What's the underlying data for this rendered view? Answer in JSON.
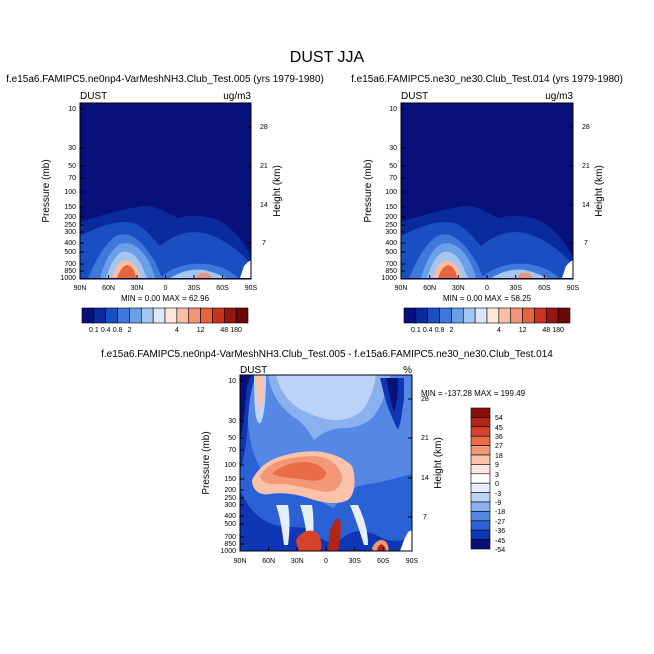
{
  "figure": {
    "title": "DUST JJA"
  },
  "colors": {
    "seq": [
      "#08107a",
      "#0a2b9e",
      "#1a4fc4",
      "#3d78da",
      "#6b9fe8",
      "#a6c6f2",
      "#dbe7f8",
      "#fde6da",
      "#f8bfa6",
      "#f19478",
      "#e6653f",
      "#c9331f",
      "#97160d",
      "#6a0908"
    ],
    "div": [
      "#08107a",
      "#0f36b4",
      "#2a62d6",
      "#5588e4",
      "#8ab0ef",
      "#bcd2f6",
      "#e6eefa",
      "#ffffff",
      "#fde7dc",
      "#f9c2a9",
      "#f29877",
      "#e96c47",
      "#d7432a",
      "#b42417",
      "#8c0e0b"
    ]
  },
  "chart_data": [
    {
      "type": "heatmap",
      "subtitle": "f.e15a6.FAMIPC5.ne0np4-VarMeshNH3.Club_Test.005 (yrs 1979-1980)",
      "left_label": "DUST",
      "right_label": "ug/m3",
      "ylabel": "Pressure (mb)",
      "ylabel_right": "Height (km)",
      "pressure_ticks": [
        "10",
        "30",
        "50",
        "70",
        "100",
        "150",
        "200",
        "250",
        "300",
        "400",
        "500",
        "700",
        "850",
        "1000"
      ],
      "height_ticks": [
        "28",
        "21",
        "14",
        "7"
      ],
      "lat_ticks": [
        "90N",
        "60N",
        "30N",
        "0",
        "30S",
        "60S",
        "90S"
      ],
      "stats": "MIN =   0.00  MAX =  62.96",
      "colorbar_labels": [
        "0.1",
        "0.4",
        "0.8",
        "2",
        "4",
        "12",
        "48",
        "180"
      ]
    },
    {
      "type": "heatmap",
      "subtitle": "f.e15a6.FAMIPC5.ne30_ne30.Club_Test.014 (yrs 1979-1980)",
      "left_label": "DUST",
      "right_label": "ug/m3",
      "ylabel": "Pressure (mb)",
      "ylabel_right": "Height (km)",
      "pressure_ticks": [
        "10",
        "30",
        "50",
        "70",
        "100",
        "150",
        "200",
        "250",
        "300",
        "400",
        "500",
        "700",
        "850",
        "1000"
      ],
      "height_ticks": [
        "28",
        "21",
        "14",
        "7"
      ],
      "lat_ticks": [
        "90N",
        "60N",
        "30N",
        "0",
        "30S",
        "60S",
        "90S"
      ],
      "stats": "MIN =   0.00  MAX =  58.25",
      "colorbar_labels": [
        "0.1",
        "0.4",
        "0.8",
        "2",
        "4",
        "12",
        "48",
        "180"
      ]
    },
    {
      "type": "heatmap",
      "subtitle": "f.e15a6.FAMIPC5.ne0np4-VarMeshNH3.Club_Test.005 - f.e15a6.FAMIPC5.ne30_ne30.Club_Test.014",
      "left_label": "DUST",
      "right_label": "%",
      "ylabel": "Pressure (mb)",
      "ylabel_right": "Height (km)",
      "pressure_ticks": [
        "10",
        "30",
        "50",
        "70",
        "100",
        "150",
        "200",
        "250",
        "300",
        "400",
        "500",
        "700",
        "850",
        "1000"
      ],
      "height_ticks": [
        "28",
        "21",
        "14",
        "7"
      ],
      "lat_ticks": [
        "90N",
        "60N",
        "30N",
        "0",
        "30S",
        "60S",
        "90S"
      ],
      "stats": "MIN = -137.28  MAX = 199.49",
      "colorbar_labels": [
        "54",
        "45",
        "36",
        "27",
        "18",
        "9",
        "3",
        "0",
        "-3",
        "-9",
        "-18",
        "-27",
        "-36",
        "-45",
        "-54"
      ]
    }
  ]
}
